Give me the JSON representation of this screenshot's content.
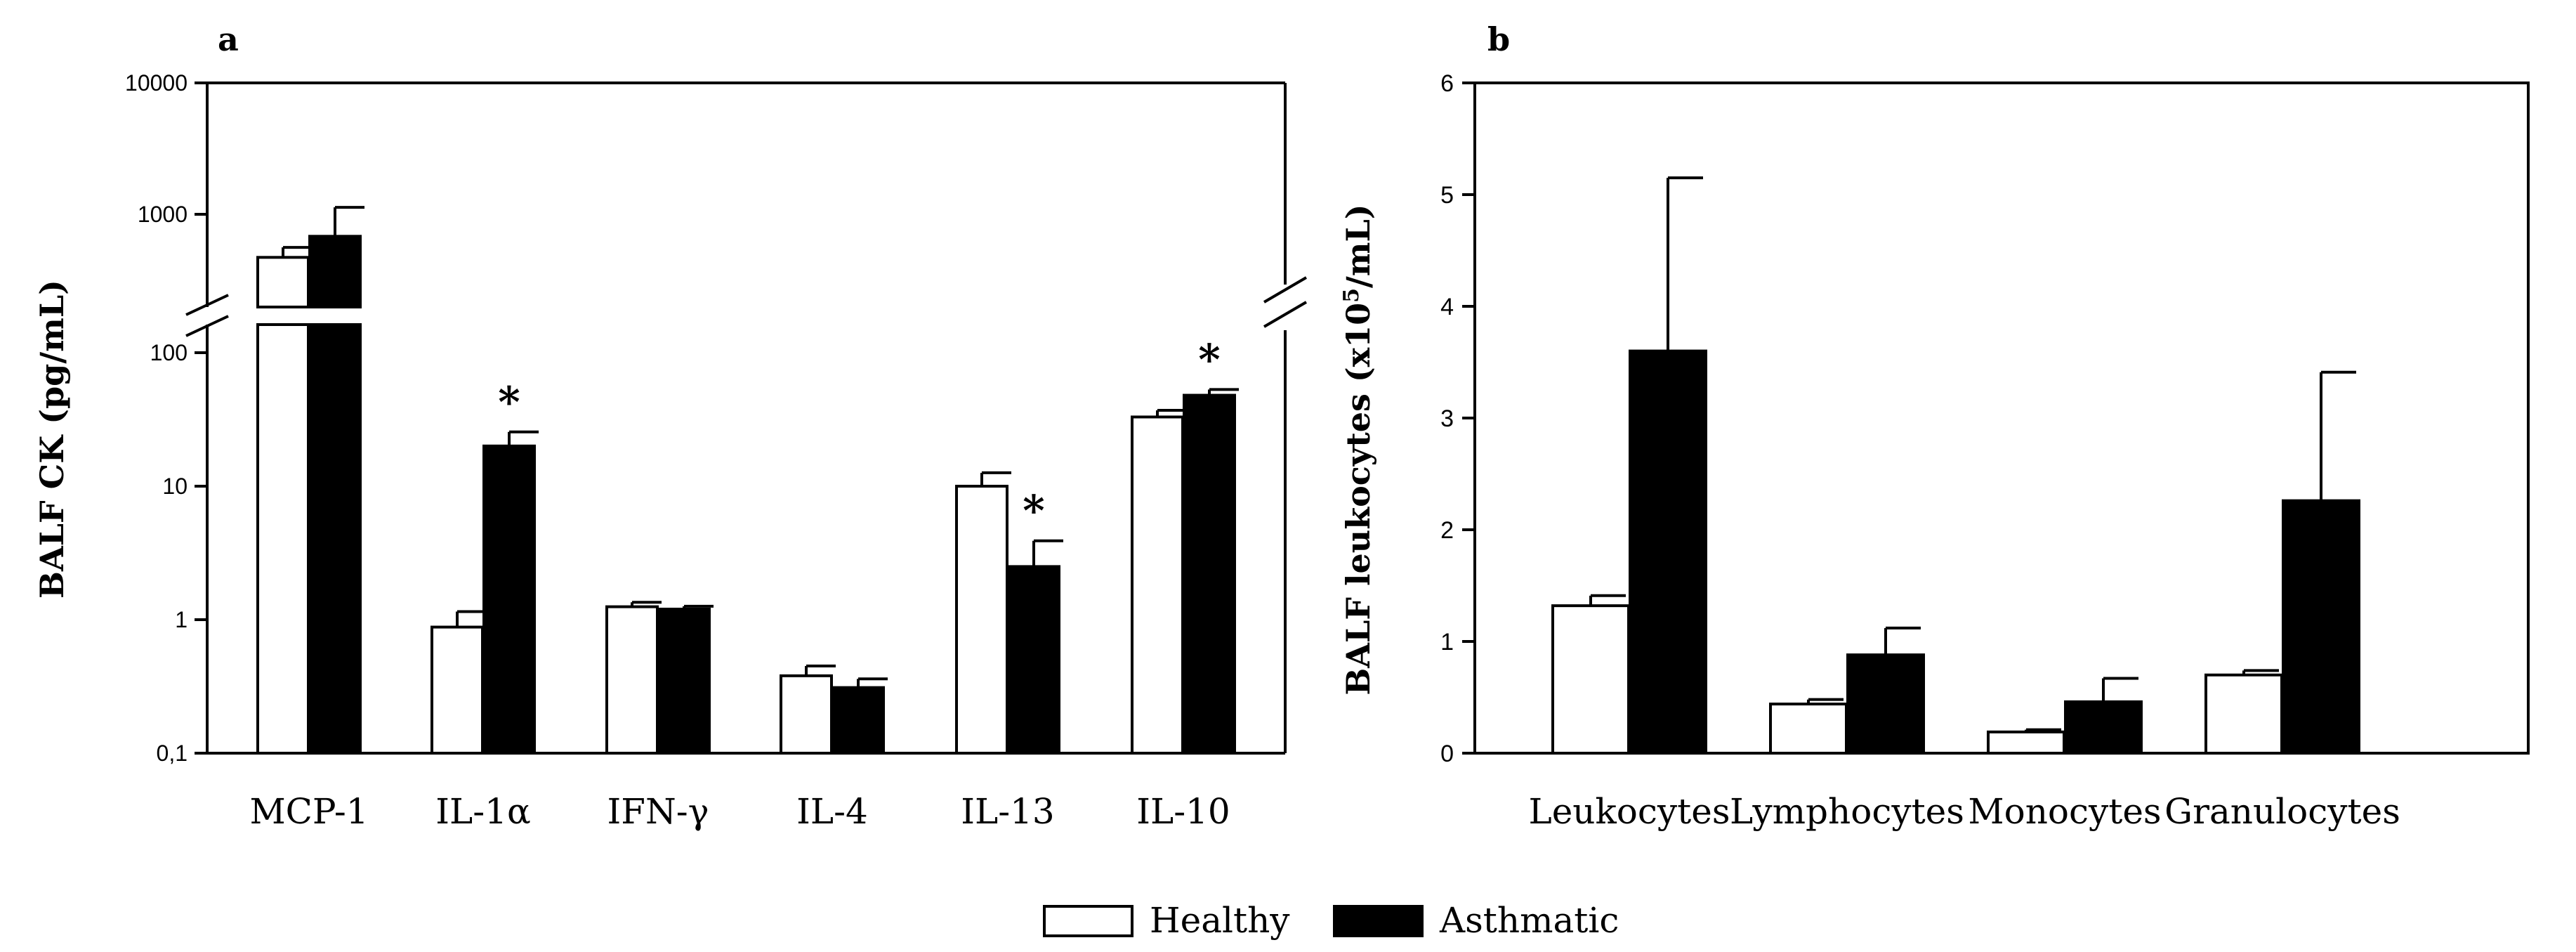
{
  "legend": {
    "items": [
      {
        "label": "Healthy",
        "fill": "#ffffff"
      },
      {
        "label": "Asthmatic",
        "fill": "#000000"
      }
    ]
  },
  "chart_data": [
    {
      "panel": "a",
      "type": "bar",
      "scale": "log-broken",
      "ylabel": "BALF CK (pg/mL)",
      "yticks": [
        "10000",
        "1000",
        "100",
        "10",
        "1",
        "0,1"
      ],
      "ylim": [
        0.1,
        10000
      ],
      "axis_break": {
        "between": [
          160,
          450
        ]
      },
      "categories": [
        "MCP-1",
        "IL-1α",
        "IFN-γ",
        "IL-4",
        "IL-13",
        "IL-10"
      ],
      "series": [
        {
          "name": "Healthy",
          "values": [
            470,
            0.88,
            1.25,
            0.38,
            10.0,
            33
          ],
          "errors": [
            90,
            0.27,
            0.1,
            0.07,
            2.6,
            4
          ]
        },
        {
          "name": "Asthmatic",
          "values": [
            680,
            20,
            1.2,
            0.31,
            2.5,
            48
          ],
          "errors": [
            450,
            5.5,
            0.06,
            0.05,
            1.4,
            5
          ]
        }
      ],
      "significance": [
        {
          "category": "IL-1α",
          "series": "Asthmatic",
          "mark": "*"
        },
        {
          "category": "IL-13",
          "series": "Asthmatic",
          "mark": "*"
        },
        {
          "category": "IL-10",
          "series": "Asthmatic",
          "mark": "*"
        }
      ],
      "grid": false
    },
    {
      "panel": "b",
      "type": "bar",
      "ylabel_main": "BALF leukocytes (x10",
      "ylabel_sup": "5",
      "ylabel_end": "/mL)",
      "yticks": [
        "0",
        "1",
        "2",
        "3",
        "4",
        "5",
        "6"
      ],
      "ylim": [
        0,
        6
      ],
      "categories": [
        "Leukocytes",
        "Lymphocytes",
        "Monocytes",
        "Granulocytes"
      ],
      "series": [
        {
          "name": "Healthy",
          "values": [
            1.32,
            0.44,
            0.19,
            0.7
          ],
          "errors": [
            0.09,
            0.04,
            0.02,
            0.04
          ]
        },
        {
          "name": "Asthmatic",
          "values": [
            3.6,
            0.88,
            0.46,
            2.26
          ],
          "errors": [
            1.55,
            0.24,
            0.21,
            1.15
          ]
        }
      ],
      "grid": false
    }
  ]
}
